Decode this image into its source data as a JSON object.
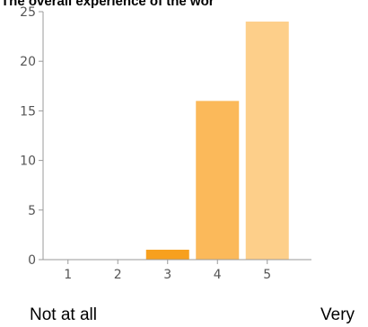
{
  "chart_data": {
    "type": "bar",
    "title": "The overall experience of the wor",
    "xlabel": "",
    "ylabel": "",
    "categories": [
      "1",
      "2",
      "3",
      "4",
      "5"
    ],
    "values": [
      0,
      0,
      1,
      16,
      24
    ],
    "ylim": [
      0,
      25
    ],
    "yticks": [
      0,
      5,
      10,
      15,
      20,
      25
    ],
    "grid": false,
    "legend": "none",
    "bar_colors": [
      "#fde9c4",
      "#fde9c4",
      "#f7a01e",
      "#fbb95a",
      "#fdcf8a"
    ],
    "axis_color": "#9a9a9a",
    "scale_labels": {
      "low": "Not at all",
      "high": "Very"
    }
  }
}
